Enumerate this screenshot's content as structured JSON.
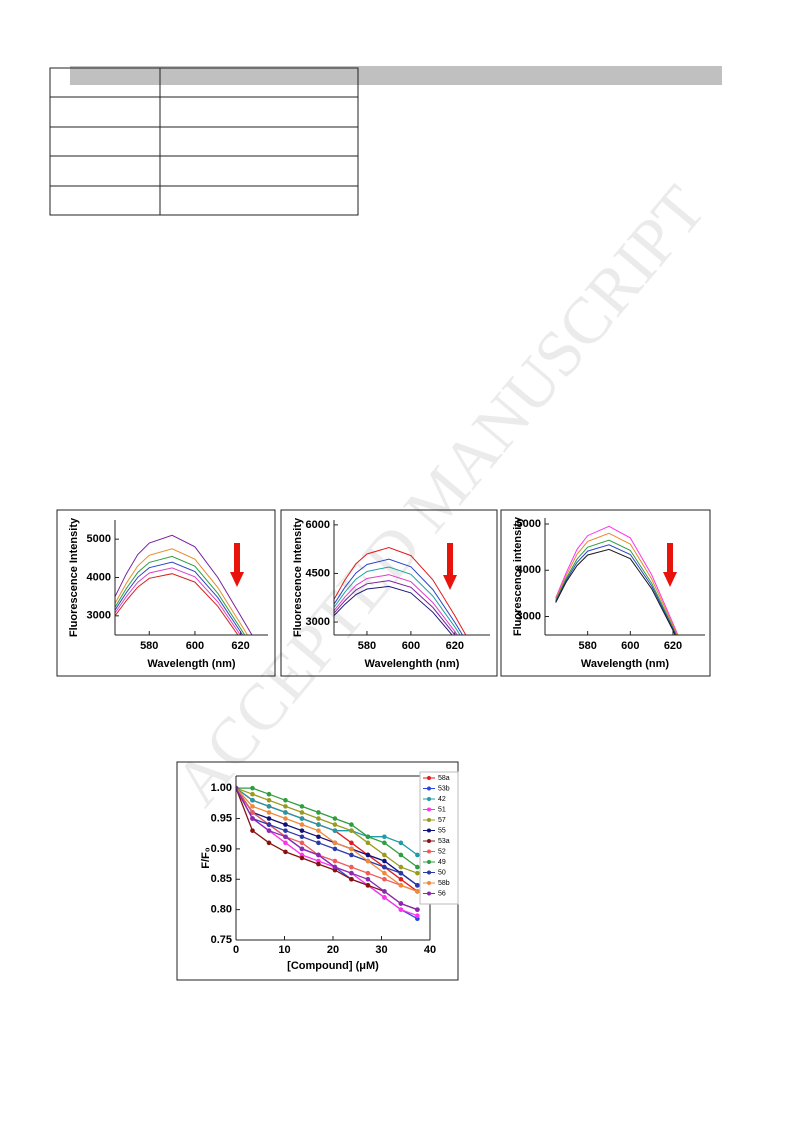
{
  "watermark": "ACCEPTED MANUSCRIPT",
  "chart_data": [
    {
      "type": "line",
      "ylabel": "Fluorescence Intensity",
      "xlabel": "Wavelength (nm)",
      "xlim": [
        565,
        632
      ],
      "xticks": [
        580,
        600,
        620
      ],
      "ylim": [
        2500,
        5500
      ],
      "yticks": [
        3000,
        4000,
        5000
      ],
      "x": [
        565,
        570,
        575,
        580,
        590,
        600,
        610,
        620,
        625
      ],
      "series": [
        {
          "color": "#7a1fa2",
          "values": [
            3500,
            4100,
            4600,
            4900,
            5100,
            4800,
            4000,
            3000,
            2500
          ]
        },
        {
          "color": "#e8892b",
          "values": [
            3325,
            3855,
            4302,
            4578,
            4750,
            4478,
            3738,
            2790,
            2308
          ]
        },
        {
          "color": "#2e9e3e",
          "values": [
            3225,
            3715,
            4132,
            4394,
            4550,
            4294,
            3588,
            2670,
            2198
          ]
        },
        {
          "color": "#2a45c9",
          "values": [
            3150,
            3610,
            4005,
            4256,
            4400,
            4156,
            3475,
            2580,
            2115
          ]
        },
        {
          "color": "#e040c8",
          "values": [
            3075,
            3505,
            3878,
            4118,
            4250,
            4018,
            3363,
            2490,
            2033
          ]
        },
        {
          "color": "#d62222",
          "values": [
            3000,
            3400,
            3750,
            3980,
            4100,
            3880,
            3250,
            2400,
            1950
          ]
        }
      ]
    },
    {
      "type": "line",
      "ylabel": "Fluorescence Intensity",
      "xlabel": "Wavelenghth (nm)",
      "xlim": [
        565,
        636
      ],
      "xticks": [
        580,
        600,
        620
      ],
      "ylim": [
        2600,
        6150
      ],
      "yticks": [
        3000,
        4500,
        6000
      ],
      "x": [
        565,
        570,
        575,
        580,
        590,
        600,
        610,
        620,
        625
      ],
      "series": [
        {
          "color": "#e41a1a",
          "values": [
            3700,
            4300,
            4800,
            5100,
            5300,
            5050,
            4300,
            3200,
            2600
          ]
        },
        {
          "color": "#2a45c9",
          "values": [
            3550,
            4075,
            4515,
            4776,
            4940,
            4705,
            4000,
            2990,
            2435
          ]
        },
        {
          "color": "#20a0a0",
          "values": [
            3450,
            3925,
            4325,
            4560,
            4700,
            4475,
            3800,
            2850,
            2325
          ]
        },
        {
          "color": "#e040c8",
          "values": [
            3350,
            3775,
            4135,
            4344,
            4460,
            4245,
            3600,
            2710,
            2215
          ]
        },
        {
          "color": "#7a1fa2",
          "values": [
            3275,
            3663,
            3993,
            4182,
            4280,
            4073,
            3450,
            2605,
            2133
          ]
        },
        {
          "color": "#1a1a7a",
          "values": [
            3200,
            3550,
            3850,
            4020,
            4100,
            3900,
            3300,
            2500,
            2050
          ]
        }
      ]
    },
    {
      "type": "line",
      "ylabel": "Fluorescence intensity",
      "xlabel": "Wavelength (nm)",
      "xlim": [
        560,
        635
      ],
      "xticks": [
        580,
        600,
        620
      ],
      "ylim": [
        2600,
        5130
      ],
      "yticks": [
        3000,
        4000,
        5000
      ],
      "x": [
        565,
        570,
        575,
        580,
        590,
        600,
        610,
        620,
        625
      ],
      "series": [
        {
          "color": "#ff33ee",
          "values": [
            3400,
            3950,
            4450,
            4750,
            4950,
            4700,
            3900,
            2850,
            2300
          ]
        },
        {
          "color": "#e8892b",
          "values": [
            3370,
            3890,
            4345,
            4624,
            4800,
            4565,
            3810,
            2805,
            2270
          ]
        },
        {
          "color": "#2e9e3e",
          "values": [
            3340,
            3830,
            4240,
            4498,
            4650,
            4430,
            3720,
            2760,
            2240
          ]
        },
        {
          "color": "#2a45c9",
          "values": [
            3320,
            3790,
            4170,
            4414,
            4550,
            4340,
            3660,
            2730,
            2220
          ]
        },
        {
          "color": "#1a1a1a",
          "values": [
            3300,
            3750,
            4100,
            4330,
            4450,
            4250,
            3600,
            2700,
            2200
          ]
        }
      ]
    },
    {
      "type": "line",
      "markers": true,
      "ylabel": "F/F₀",
      "xlabel": "[Compound] (μM)",
      "xlim": [
        0,
        40
      ],
      "xticks": [
        0,
        10,
        20,
        30,
        40
      ],
      "ylim": [
        0.75,
        1.02
      ],
      "yticks": [
        0.75,
        {
          "value": 0.8,
          "label": "0.80"
        },
        0.85,
        {
          "value": 0.9,
          "label": "0.90"
        },
        0.95,
        {
          "value": 1.0,
          "label": "1.00"
        }
      ],
      "x": [
        0,
        3.4,
        6.8,
        10.2,
        13.6,
        17,
        20.4,
        23.8,
        27.2,
        30.6,
        34,
        37.4
      ],
      "series": [
        {
          "name": "58a",
          "color": "#e41a1a",
          "values": [
            1,
            0.98,
            0.97,
            0.96,
            0.95,
            0.94,
            0.93,
            0.91,
            0.89,
            0.87,
            0.85,
            0.83
          ]
        },
        {
          "name": "53b",
          "color": "#2a45e0",
          "values": [
            1,
            0.96,
            0.94,
            0.92,
            0.9,
            0.89,
            0.87,
            0.85,
            0.84,
            0.82,
            0.8,
            0.785
          ]
        },
        {
          "name": "42",
          "color": "#1f9aa8",
          "values": [
            1,
            0.98,
            0.97,
            0.96,
            0.95,
            0.94,
            0.93,
            0.93,
            0.92,
            0.92,
            0.91,
            0.89
          ]
        },
        {
          "name": "51",
          "color": "#ff33ee",
          "values": [
            1,
            0.95,
            0.93,
            0.91,
            0.89,
            0.88,
            0.87,
            0.86,
            0.84,
            0.82,
            0.8,
            0.79
          ]
        },
        {
          "name": "57",
          "color": "#9a9a20",
          "values": [
            1,
            0.99,
            0.98,
            0.97,
            0.96,
            0.95,
            0.94,
            0.93,
            0.91,
            0.89,
            0.87,
            0.86
          ]
        },
        {
          "name": "55",
          "color": "#10107a",
          "values": [
            1,
            0.96,
            0.95,
            0.94,
            0.93,
            0.92,
            0.91,
            0.9,
            0.89,
            0.88,
            0.86,
            0.84
          ]
        },
        {
          "name": "53a",
          "color": "#8a1010",
          "values": [
            1,
            0.93,
            0.91,
            0.895,
            0.885,
            0.875,
            0.865,
            0.85,
            0.84,
            0.83,
            0.81,
            0.8
          ]
        },
        {
          "name": "52",
          "color": "#f05a5a",
          "values": [
            1,
            0.96,
            0.94,
            0.92,
            0.91,
            0.89,
            0.88,
            0.87,
            0.86,
            0.85,
            0.84,
            0.83
          ]
        },
        {
          "name": "49",
          "color": "#2e9e3e",
          "values": [
            1,
            1,
            0.99,
            0.98,
            0.97,
            0.96,
            0.95,
            0.94,
            0.92,
            0.91,
            0.89,
            0.87
          ]
        },
        {
          "name": "50",
          "color": "#2a3aa8",
          "values": [
            1,
            0.95,
            0.94,
            0.93,
            0.92,
            0.91,
            0.9,
            0.89,
            0.88,
            0.87,
            0.86,
            0.84
          ]
        },
        {
          "name": "58b",
          "color": "#f08a3a",
          "values": [
            1,
            0.97,
            0.96,
            0.95,
            0.94,
            0.93,
            0.91,
            0.9,
            0.88,
            0.86,
            0.84,
            0.83
          ]
        },
        {
          "name": "56",
          "color": "#8a2ab0",
          "values": [
            1,
            0.95,
            0.93,
            0.92,
            0.9,
            0.89,
            0.87,
            0.86,
            0.85,
            0.83,
            0.81,
            0.8
          ]
        }
      ]
    }
  ]
}
